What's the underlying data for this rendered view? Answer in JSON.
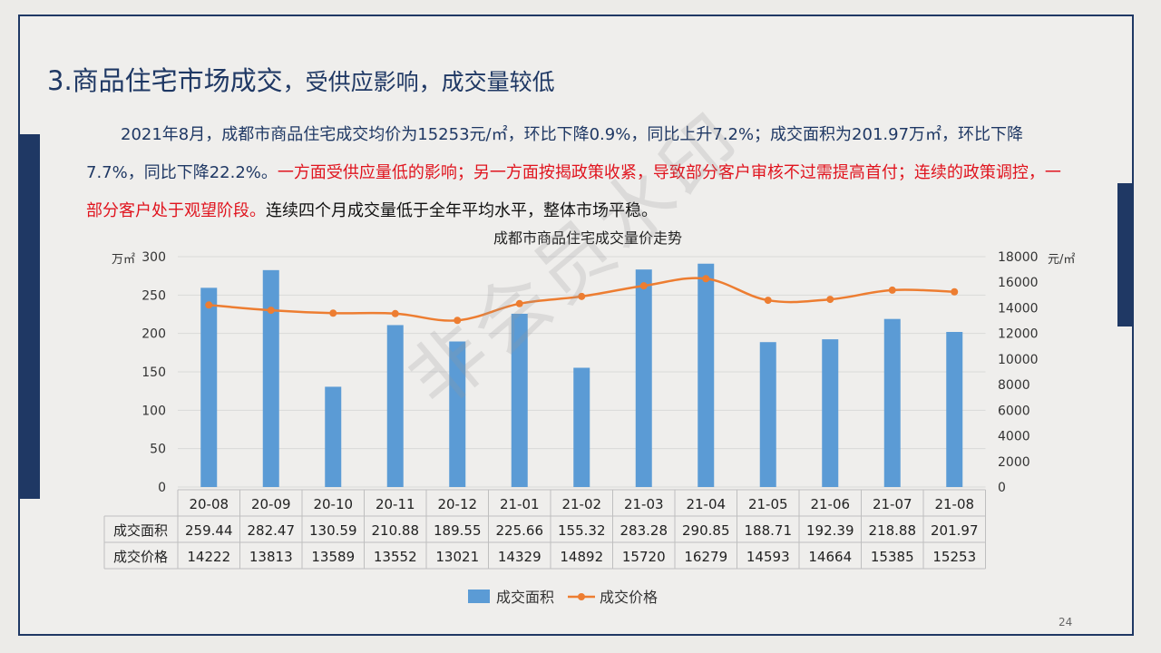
{
  "slide": {
    "title_main": "3.商品住宅市场成交",
    "title_sub": "，受供应影响，成交量较低",
    "para_blue": "2021年8月，成都市商品住宅成交均价为15253元/㎡，环比下降0.9%，同比上升7.2%；成交面积为201.97万㎡，环比下降7.7%，同比下降22.2%。",
    "para_red": "一方面受供应量低的影响；另一方面按揭政策收紧，导致部分客户审核不过需提高首付；连续的政策调控，一部分客户处于观望阶段。",
    "para_black": "连续四个月成交量低于全年平均水平，整体市场平稳。",
    "watermark": "非会员水印",
    "page_number": "24"
  },
  "chart_data": {
    "type": "bar+line",
    "title": "成都市商品住宅成交量价走势",
    "categories": [
      "20-08",
      "20-09",
      "20-10",
      "20-11",
      "20-12",
      "21-01",
      "21-02",
      "21-03",
      "21-04",
      "21-05",
      "21-06",
      "21-07",
      "21-08"
    ],
    "series": [
      {
        "name": "成交面积",
        "type": "bar",
        "axis": "left",
        "color": "#5b9bd5",
        "values": [
          259.44,
          282.47,
          130.59,
          210.88,
          189.55,
          225.66,
          155.32,
          283.28,
          290.85,
          188.71,
          192.39,
          218.88,
          201.97
        ]
      },
      {
        "name": "成交价格",
        "type": "line",
        "axis": "right",
        "color": "#ed7d31",
        "values": [
          14222,
          13813,
          13589,
          13552,
          13021,
          14329,
          14892,
          15720,
          16279,
          14593,
          14664,
          15385,
          15253
        ]
      }
    ],
    "left_axis": {
      "unit": "万㎡",
      "ylim": [
        0,
        300
      ],
      "ticks": [
        "0",
        "50",
        "100",
        "150",
        "200",
        "250",
        "300"
      ]
    },
    "right_axis": {
      "unit": "元/㎡",
      "ylim": [
        0,
        18000
      ],
      "ticks": [
        "0",
        "2000",
        "4000",
        "6000",
        "8000",
        "10000",
        "12000",
        "14000",
        "16000",
        "18000"
      ]
    },
    "table_rows": [
      {
        "label": "成交面积",
        "values": [
          "259.44",
          "282.47",
          "130.59",
          "210.88",
          "189.55",
          "225.66",
          "155.32",
          "283.28",
          "290.85",
          "188.71",
          "192.39",
          "218.88",
          "201.97"
        ]
      },
      {
        "label": "成交价格",
        "values": [
          "14222",
          "13813",
          "13589",
          "13552",
          "13021",
          "14329",
          "14892",
          "15720",
          "16279",
          "14593",
          "14664",
          "15385",
          "15253"
        ]
      }
    ],
    "legend": [
      "成交面积",
      "成交价格"
    ],
    "legend_position": "bottom",
    "grid": true
  }
}
